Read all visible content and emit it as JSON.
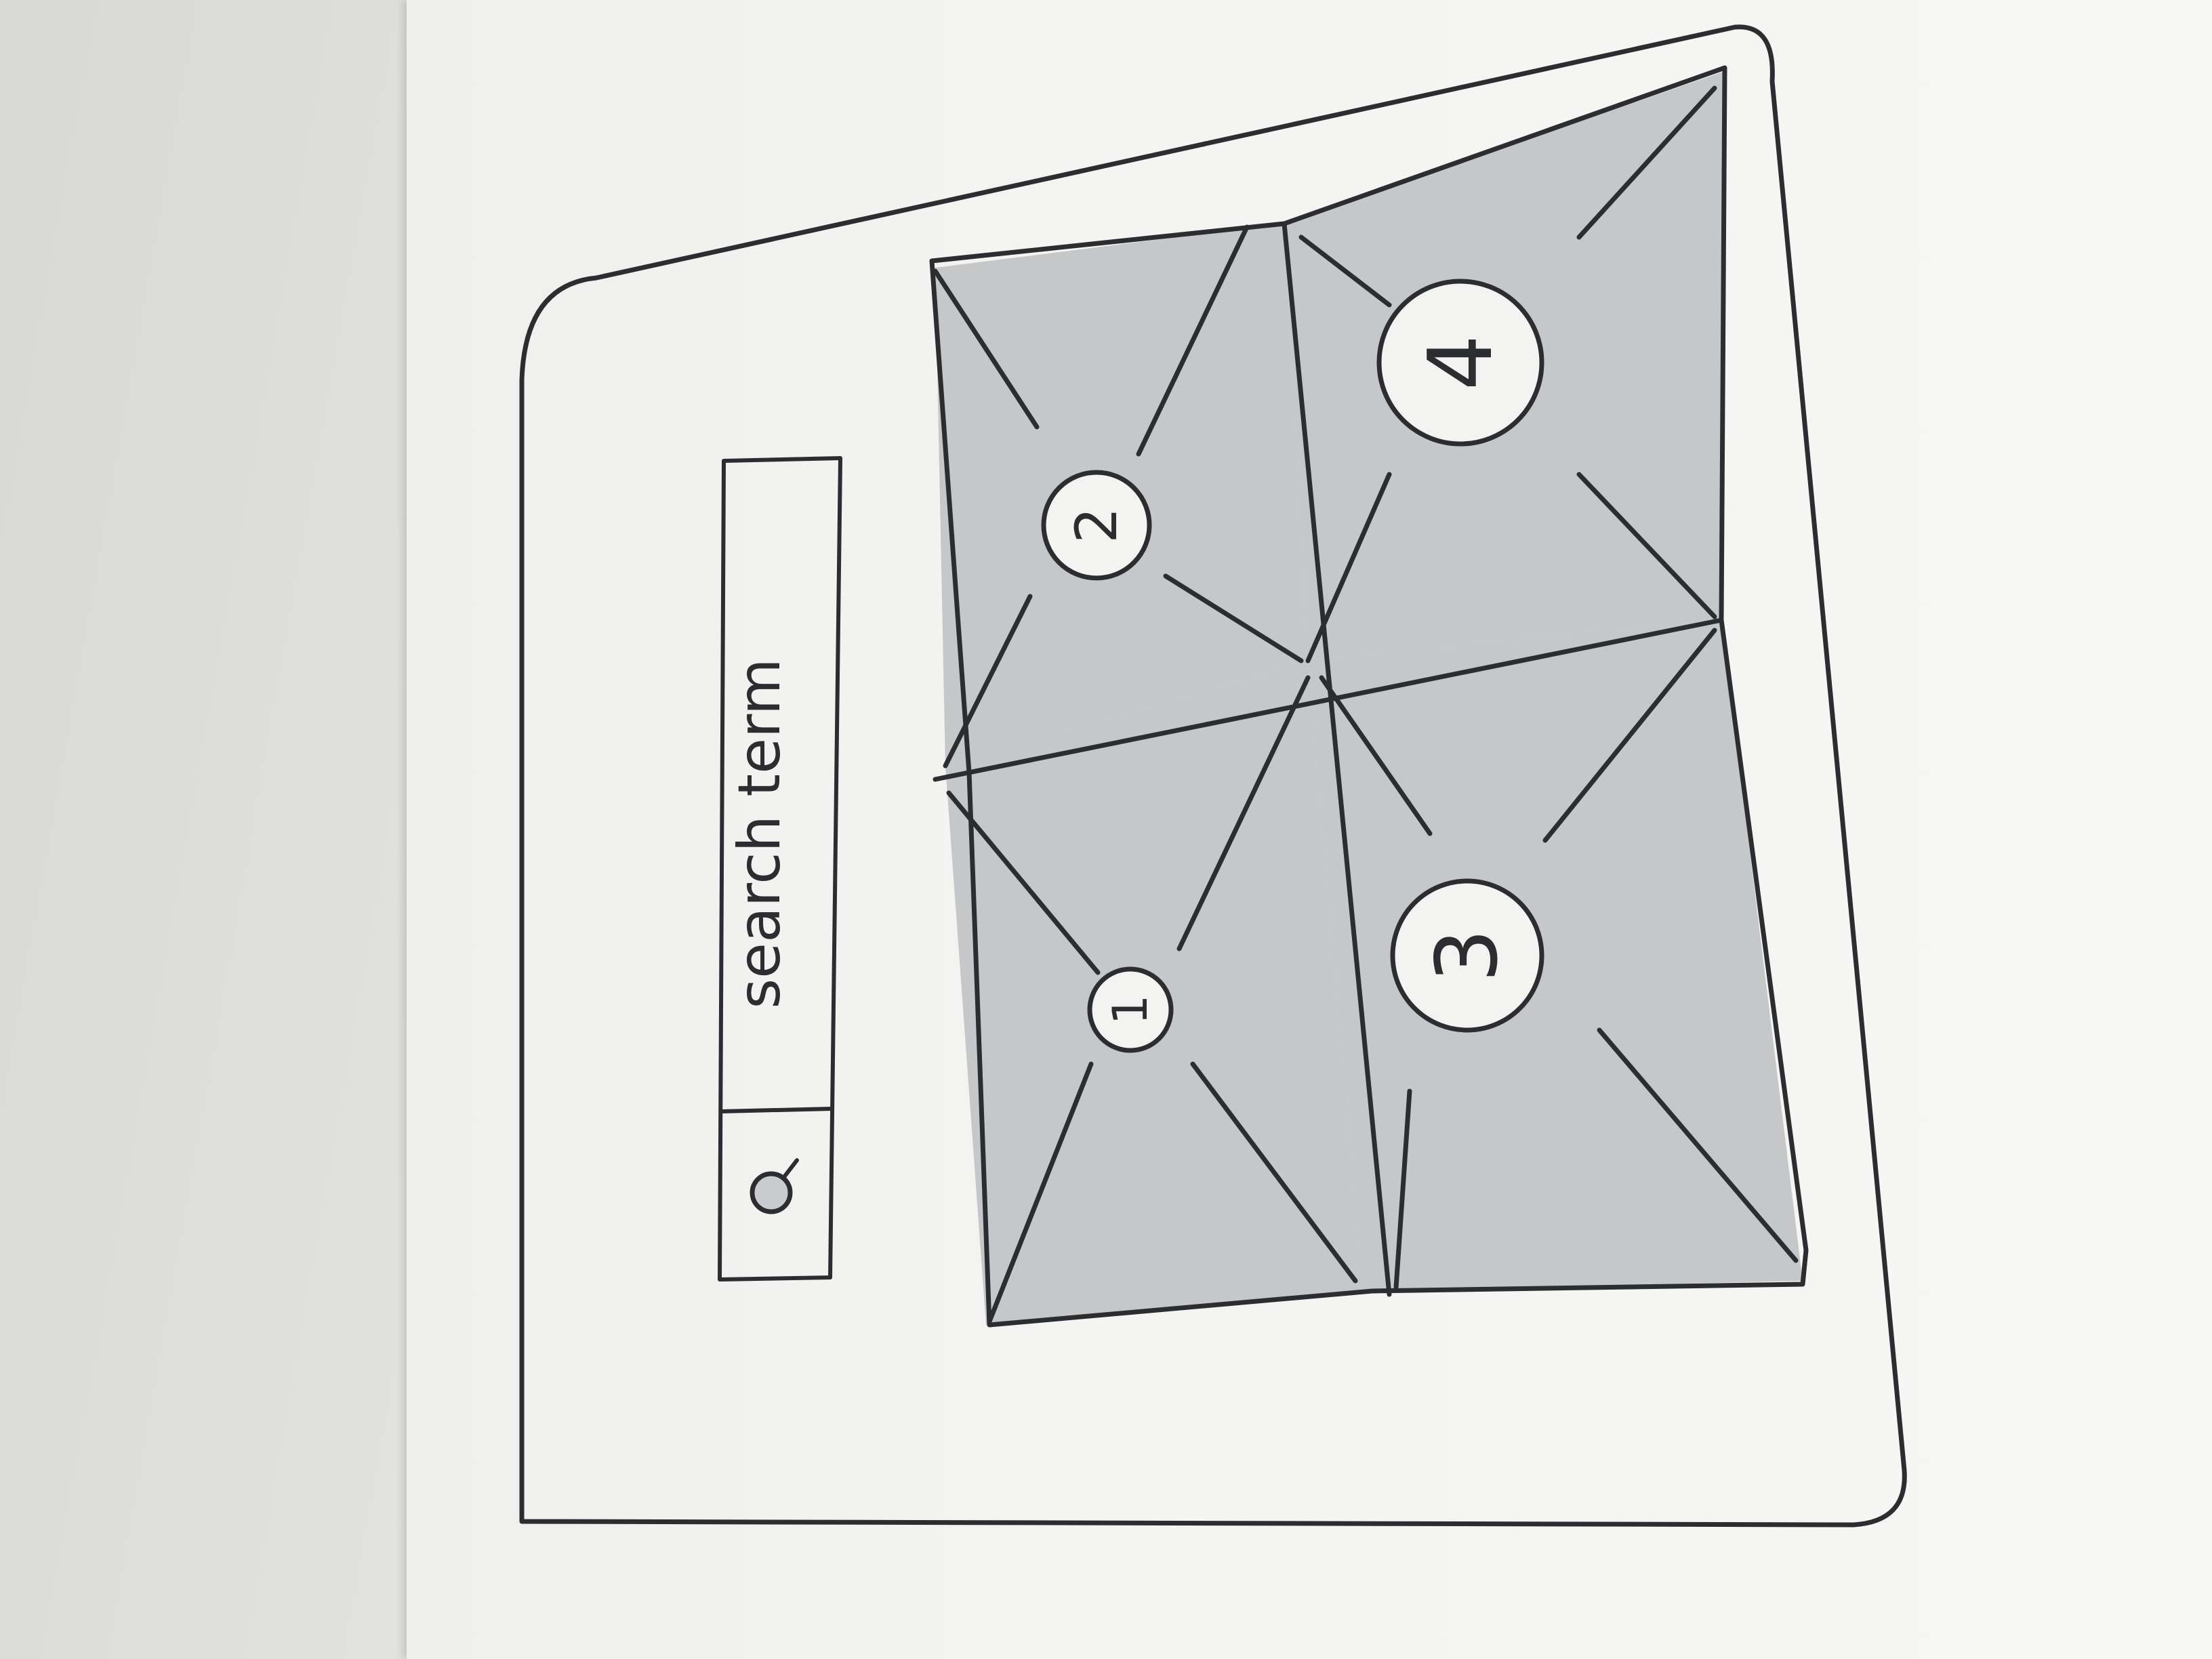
{
  "search": {
    "icon": "search-icon",
    "placeholder": "search term"
  },
  "grid": {
    "tiles": [
      {
        "number": "1",
        "content": "image-placeholder"
      },
      {
        "number": "2",
        "content": "image-placeholder"
      },
      {
        "number": "3",
        "content": "image-placeholder"
      },
      {
        "number": "4",
        "content": "image-placeholder"
      }
    ]
  },
  "colors": {
    "ink": "#2b2d30",
    "shade": "#b8babd",
    "paper": "#f4f4f2"
  }
}
